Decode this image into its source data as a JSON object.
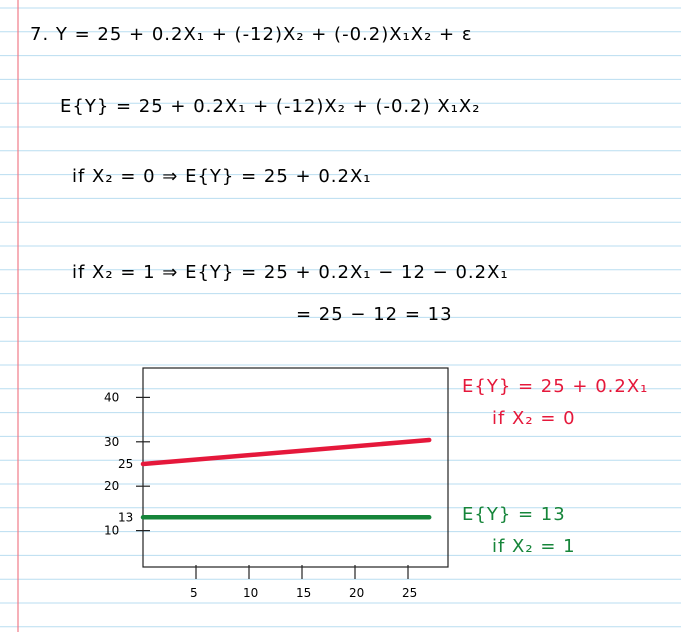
{
  "notes": {
    "line1": "7.  Y = 25 + 0.2X₁ + (-12)X₂ + (-0.2)X₁X₂ + ε",
    "line2": "E{Y} = 25 + 0.2X₁ + (-12)X₂ + (-0.2) X₁X₂",
    "line3": "if X₂ = 0   ⇒   E{Y} = 25 + 0.2X₁",
    "line4": "if X₂ = 1   ⇒   E{Y} = 25 + 0.2X₁ − 12 − 0.2X₁",
    "line5": "= 25 − 12 = 13"
  },
  "annotations": {
    "red_eq": "E{Y} = 25 + 0.2X₁",
    "red_cond": "if X₂ = 0",
    "green_eq": "E{Y} = 13",
    "green_cond": "if X₂ = 1"
  },
  "colors": {
    "rule": "#b9ddf0",
    "margin": "#f07b88",
    "red_line": "#e5183b",
    "green_line": "#16853a"
  },
  "chart_data": {
    "type": "line",
    "title": "",
    "xlabel": "",
    "ylabel": "",
    "x_ticks": [
      "5",
      "10",
      "15",
      "20",
      "25"
    ],
    "y_ticks": [
      "40",
      "30",
      "20",
      "10"
    ],
    "y_marked": [
      "25",
      "13"
    ],
    "series": [
      {
        "name": "E{Y} = 25 + 0.2X₁, if X₂ = 0",
        "color": "#e5183b",
        "x": [
          0,
          27
        ],
        "y": [
          25,
          30.4
        ]
      },
      {
        "name": "E{Y} = 13, if X₂ = 1",
        "color": "#16853a",
        "x": [
          0,
          27
        ],
        "y": [
          13,
          13
        ]
      }
    ]
  }
}
